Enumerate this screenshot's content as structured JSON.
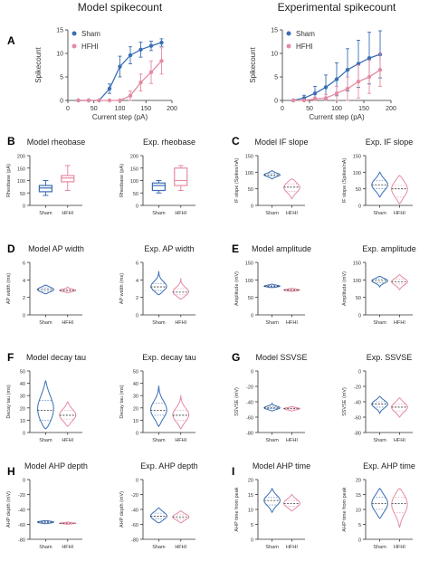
{
  "colors": {
    "sham": "#3a6eb5",
    "hfhi": "#e58ba2",
    "axis": "#333333",
    "text": "#222222"
  },
  "chart_data": [
    {
      "id": "model_spikecount",
      "panel_letter": "A",
      "type": "line",
      "title": "Model spikecount",
      "xlabel": "Current step (pA)",
      "ylabel": "Spikecount",
      "xlim": [
        0,
        200
      ],
      "ylim": [
        0,
        15
      ],
      "xticks": [
        0,
        50,
        100,
        150,
        200
      ],
      "yticks": [
        0,
        5,
        10,
        15
      ],
      "legend": "top-left",
      "series": [
        {
          "name": "Sham",
          "color": "#3a6eb5",
          "x": [
            20,
            40,
            60,
            80,
            100,
            120,
            140,
            160,
            180
          ],
          "y": [
            0,
            0,
            0,
            2.5,
            7.2,
            9.6,
            10.8,
            11.6,
            12.3
          ],
          "err": [
            0,
            0,
            0,
            1.0,
            2.2,
            1.8,
            1.6,
            1.0,
            0.8
          ]
        },
        {
          "name": "HFHI",
          "color": "#e58ba2",
          "x": [
            20,
            40,
            60,
            80,
            100,
            120,
            140,
            160,
            180
          ],
          "y": [
            0,
            0,
            0,
            0,
            0,
            1.0,
            3.8,
            6.0,
            8.4
          ],
          "err": [
            0,
            0,
            0,
            0,
            0,
            1.0,
            1.8,
            2.4,
            2.8
          ]
        }
      ]
    },
    {
      "id": "exp_spikecount",
      "panel_letter": "",
      "type": "line",
      "title": "Experimental spikecount",
      "xlabel": "Current step (pA)",
      "ylabel": "Spikecount",
      "xlim": [
        0,
        200
      ],
      "ylim": [
        0,
        15
      ],
      "xticks": [
        0,
        50,
        100,
        150,
        200
      ],
      "yticks": [
        0,
        5,
        10,
        15
      ],
      "legend": "top-left",
      "series": [
        {
          "name": "Sham",
          "color": "#3a6eb5",
          "x": [
            20,
            40,
            60,
            80,
            100,
            120,
            140,
            160,
            180
          ],
          "y": [
            0,
            0.5,
            1.5,
            2.8,
            4.5,
            6.5,
            7.8,
            9.0,
            9.8
          ],
          "err": [
            0,
            0.6,
            1.5,
            2.6,
            3.5,
            4.5,
            5.0,
            5.5,
            5.0
          ]
        },
        {
          "name": "HFHI",
          "color": "#e58ba2",
          "x": [
            20,
            40,
            60,
            80,
            100,
            120,
            140,
            160,
            180
          ],
          "y": [
            0,
            0,
            0.3,
            0.5,
            1.5,
            2.5,
            4.0,
            5.0,
            6.5
          ],
          "err": [
            0,
            0,
            0.4,
            0.8,
            1.5,
            2.5,
            3.5,
            3.5,
            3.5
          ]
        }
      ]
    },
    {
      "id": "model_rheobase",
      "panel_letter": "B",
      "type": "box",
      "title": "Model rheobase",
      "ylabel": "Rheobase (pA)",
      "ylim": [
        0,
        200
      ],
      "yticks": [
        0,
        50,
        100,
        150,
        200
      ],
      "categories": [
        "Sham",
        "HFHI"
      ],
      "groups": [
        {
          "name": "Sham",
          "color": "#3a6eb5",
          "min": 40,
          "q1": 55,
          "median": 70,
          "q3": 80,
          "max": 100
        },
        {
          "name": "HFHI",
          "color": "#e58ba2",
          "min": 60,
          "q1": 95,
          "median": 110,
          "q3": 120,
          "max": 160
        }
      ]
    },
    {
      "id": "exp_rheobase",
      "panel_letter": "",
      "type": "box",
      "title": "Exp. rheobase",
      "ylabel": "Rheobase (pA)",
      "ylim": [
        0,
        200
      ],
      "yticks": [
        0,
        50,
        100,
        150,
        200
      ],
      "categories": [
        "Sham",
        "HFHI"
      ],
      "groups": [
        {
          "name": "Sham",
          "color": "#3a6eb5",
          "min": 50,
          "q1": 60,
          "median": 80,
          "q3": 90,
          "max": 100
        },
        {
          "name": "HFHI",
          "color": "#e58ba2",
          "min": 60,
          "q1": 80,
          "median": 100,
          "q3": 150,
          "max": 160
        }
      ]
    },
    {
      "id": "model_if_slope",
      "panel_letter": "C",
      "type": "violin",
      "title": "Model IF slope",
      "ylabel": "IF slope (Spikes/nA)",
      "ylim": [
        0,
        150
      ],
      "yticks": [
        0,
        50,
        100,
        150
      ],
      "categories": [
        "Sham",
        "HFHI"
      ],
      "groups": [
        {
          "name": "Sham",
          "color": "#3a6eb5",
          "min": 80,
          "max": 105,
          "median": 92,
          "q1": 88,
          "q3": 96
        },
        {
          "name": "HFHI",
          "color": "#e58ba2",
          "min": 20,
          "max": 80,
          "median": 55,
          "q1": 42,
          "q3": 65
        }
      ]
    },
    {
      "id": "exp_if_slope",
      "panel_letter": "",
      "type": "violin",
      "title": "Exp. IF slope",
      "ylabel": "IF slope (Spikes/nA)",
      "ylim": [
        0,
        150
      ],
      "yticks": [
        0,
        50,
        100,
        150
      ],
      "categories": [
        "Sham",
        "HFHI"
      ],
      "groups": [
        {
          "name": "Sham",
          "color": "#3a6eb5",
          "min": 25,
          "max": 100,
          "median": 62,
          "q1": 50,
          "q3": 75
        },
        {
          "name": "HFHI",
          "color": "#e58ba2",
          "min": 5,
          "max": 90,
          "median": 50,
          "q1": 25,
          "q3": 60
        }
      ]
    },
    {
      "id": "model_ap_width",
      "panel_letter": "D",
      "type": "violin",
      "title": "Model AP width",
      "ylabel": "AP width (ms)",
      "ylim": [
        0,
        6
      ],
      "yticks": [
        0,
        2,
        4,
        6
      ],
      "categories": [
        "Sham",
        "HFHI"
      ],
      "groups": [
        {
          "name": "Sham",
          "color": "#3a6eb5",
          "min": 2.4,
          "max": 3.4,
          "median": 2.9,
          "q1": 2.7,
          "q3": 3.1
        },
        {
          "name": "HFHI",
          "color": "#e58ba2",
          "min": 2.5,
          "max": 3.2,
          "median": 2.8,
          "q1": 2.7,
          "q3": 2.9
        }
      ]
    },
    {
      "id": "exp_ap_width",
      "panel_letter": "",
      "type": "violin",
      "title": "Exp. AP width",
      "ylabel": "AP width (ms)",
      "ylim": [
        0,
        6
      ],
      "yticks": [
        0,
        2,
        4,
        6
      ],
      "categories": [
        "Sham",
        "HFHI"
      ],
      "groups": [
        {
          "name": "Sham",
          "color": "#3a6eb5",
          "min": 2.3,
          "max": 5.0,
          "median": 3.2,
          "q1": 2.8,
          "q3": 3.6
        },
        {
          "name": "HFHI",
          "color": "#e58ba2",
          "min": 1.8,
          "max": 4.2,
          "median": 2.6,
          "q1": 2.3,
          "q3": 3.0
        }
      ]
    },
    {
      "id": "model_amplitude",
      "panel_letter": "E",
      "type": "violin",
      "title": "Model amplitude",
      "ylabel": "Amplitude (mV)",
      "ylim": [
        0,
        150
      ],
      "yticks": [
        0,
        50,
        100,
        150
      ],
      "categories": [
        "Sham",
        "HFHI"
      ],
      "groups": [
        {
          "name": "Sham",
          "color": "#3a6eb5",
          "min": 78,
          "max": 88,
          "median": 82,
          "q1": 80,
          "q3": 84
        },
        {
          "name": "HFHI",
          "color": "#e58ba2",
          "min": 67,
          "max": 76,
          "median": 71,
          "q1": 69,
          "q3": 73
        }
      ]
    },
    {
      "id": "exp_amplitude",
      "panel_letter": "",
      "type": "violin",
      "title": "Exp. amplitude",
      "ylabel": "Amplitude (mV)",
      "ylim": [
        0,
        150
      ],
      "yticks": [
        0,
        50,
        100,
        150
      ],
      "categories": [
        "Sham",
        "HFHI"
      ],
      "groups": [
        {
          "name": "Sham",
          "color": "#3a6eb5",
          "min": 80,
          "max": 110,
          "median": 98,
          "q1": 92,
          "q3": 102
        },
        {
          "name": "HFHI",
          "color": "#e58ba2",
          "min": 72,
          "max": 115,
          "median": 95,
          "q1": 88,
          "q3": 102
        }
      ]
    },
    {
      "id": "model_decay_tau",
      "panel_letter": "F",
      "type": "violin",
      "title": "Model decay tau",
      "ylabel": "Decay tau (ms)",
      "ylim": [
        0,
        50
      ],
      "yticks": [
        0,
        10,
        20,
        30,
        40,
        50
      ],
      "categories": [
        "Sham",
        "HFHI"
      ],
      "groups": [
        {
          "name": "Sham",
          "color": "#3a6eb5",
          "min": 3,
          "max": 42,
          "median": 18,
          "q1": 10,
          "q3": 26
        },
        {
          "name": "HFHI",
          "color": "#e58ba2",
          "min": 5,
          "max": 25,
          "median": 14,
          "q1": 11,
          "q3": 18
        }
      ]
    },
    {
      "id": "exp_decay_tau",
      "panel_letter": "",
      "type": "violin",
      "title": "Exp. decay tau",
      "ylabel": "Decay tau (ms)",
      "ylim": [
        0,
        50
      ],
      "yticks": [
        0,
        10,
        20,
        30,
        40,
        50
      ],
      "categories": [
        "Sham",
        "HFHI"
      ],
      "groups": [
        {
          "name": "Sham",
          "color": "#3a6eb5",
          "min": 5,
          "max": 38,
          "median": 18,
          "q1": 14,
          "q3": 24
        },
        {
          "name": "HFHI",
          "color": "#e58ba2",
          "min": 3,
          "max": 30,
          "median": 14,
          "q1": 10,
          "q3": 18
        }
      ]
    },
    {
      "id": "model_ssvse",
      "panel_letter": "G",
      "type": "violin",
      "title": "Model SSVSE",
      "ylabel": "SSVSE (mV)",
      "ylim": [
        -80,
        0
      ],
      "yticks": [
        -80,
        -60,
        -40,
        -20,
        0
      ],
      "categories": [
        "Sham",
        "HFHI"
      ],
      "groups": [
        {
          "name": "Sham",
          "color": "#3a6eb5",
          "min": -52,
          "max": -42,
          "median": -48,
          "q1": -49,
          "q3": -46
        },
        {
          "name": "HFHI",
          "color": "#e58ba2",
          "min": -52,
          "max": -46,
          "median": -49,
          "q1": -50,
          "q3": -48
        }
      ]
    },
    {
      "id": "exp_ssvse",
      "panel_letter": "",
      "type": "violin",
      "title": "Exp. SSVSE",
      "ylabel": "SSVSE (mV)",
      "ylim": [
        -80,
        0
      ],
      "yticks": [
        -80,
        -60,
        -40,
        -20,
        0
      ],
      "categories": [
        "Sham",
        "HFHI"
      ],
      "groups": [
        {
          "name": "Sham",
          "color": "#3a6eb5",
          "min": -55,
          "max": -33,
          "median": -43,
          "q1": -47,
          "q3": -40
        },
        {
          "name": "HFHI",
          "color": "#e58ba2",
          "min": -60,
          "max": -35,
          "median": -47,
          "q1": -52,
          "q3": -43
        }
      ]
    },
    {
      "id": "model_ahp_depth",
      "panel_letter": "H",
      "type": "violin",
      "title": "Model AHP depth",
      "ylabel": "AHP depth (mV)",
      "ylim": [
        -80,
        0
      ],
      "yticks": [
        -80,
        -60,
        -40,
        -20,
        0
      ],
      "categories": [
        "Sham",
        "HFHI"
      ],
      "groups": [
        {
          "name": "Sham",
          "color": "#3a6eb5",
          "min": -59,
          "max": -55,
          "median": -57,
          "q1": -58,
          "q3": -56
        },
        {
          "name": "HFHI",
          "color": "#e58ba2",
          "min": -60,
          "max": -57,
          "median": -58.5,
          "q1": -59,
          "q3": -58
        }
      ]
    },
    {
      "id": "exp_ahp_depth",
      "panel_letter": "",
      "type": "violin",
      "title": "Exp. AHP depth",
      "ylabel": "AHP depth (mV)",
      "ylim": [
        -80,
        0
      ],
      "yticks": [
        -80,
        -60,
        -40,
        -20,
        0
      ],
      "categories": [
        "Sham",
        "HFHI"
      ],
      "groups": [
        {
          "name": "Sham",
          "color": "#3a6eb5",
          "min": -58,
          "max": -38,
          "median": -49,
          "q1": -53,
          "q3": -45
        },
        {
          "name": "HFHI",
          "color": "#e58ba2",
          "min": -58,
          "max": -42,
          "median": -50,
          "q1": -53,
          "q3": -47
        }
      ]
    },
    {
      "id": "model_ahp_time",
      "panel_letter": "I",
      "type": "violin",
      "title": "Model AHP time",
      "ylabel": "AHP time from peak",
      "ylim": [
        0,
        20
      ],
      "yticks": [
        0,
        5,
        10,
        15,
        20
      ],
      "categories": [
        "Sham",
        "HFHI"
      ],
      "groups": [
        {
          "name": "Sham",
          "color": "#3a6eb5",
          "min": 9,
          "max": 17,
          "median": 13,
          "q1": 11.5,
          "q3": 14
        },
        {
          "name": "HFHI",
          "color": "#e58ba2",
          "min": 9.5,
          "max": 15,
          "median": 12,
          "q1": 11,
          "q3": 13
        }
      ]
    },
    {
      "id": "exp_ahp_time",
      "panel_letter": "",
      "type": "violin",
      "title": "Exp. AHP time",
      "ylabel": "AHP time from peak",
      "ylim": [
        0,
        20
      ],
      "yticks": [
        0,
        5,
        10,
        15,
        20
      ],
      "categories": [
        "Sham",
        "HFHI"
      ],
      "groups": [
        {
          "name": "Sham",
          "color": "#3a6eb5",
          "min": 7,
          "max": 17,
          "median": 12,
          "q1": 10,
          "q3": 14
        },
        {
          "name": "HFHI",
          "color": "#e58ba2",
          "min": 4,
          "max": 17,
          "median": 12,
          "q1": 9,
          "q3": 14
        }
      ]
    }
  ]
}
